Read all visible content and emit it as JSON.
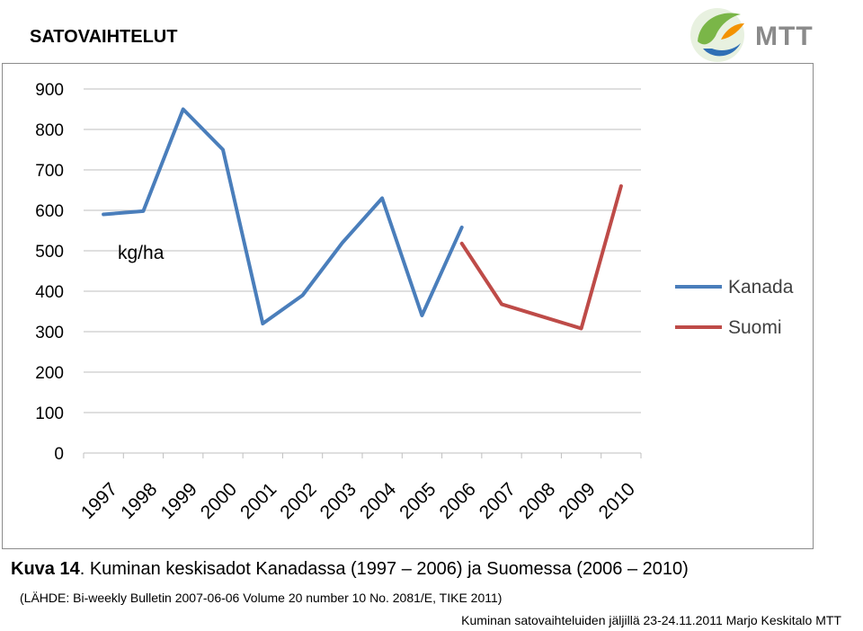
{
  "header": {
    "title": "SATOVAIHTELUT"
  },
  "logo": {
    "text": "MTT",
    "colors": {
      "green": "#7ab648",
      "blue": "#2f6fb5",
      "orange": "#f39200",
      "text_grey": "#8a8a8a"
    }
  },
  "chart_data": {
    "type": "line",
    "title": "",
    "xlabel": "",
    "ylabel": "",
    "unit_label": "kg/ha",
    "categories": [
      "1997",
      "1998",
      "1999",
      "2000",
      "2001",
      "2002",
      "2003",
      "2004",
      "2005",
      "2006",
      "2007",
      "2008",
      "2009",
      "2010"
    ],
    "ylim": [
      0,
      900
    ],
    "yticks": [
      0,
      100,
      200,
      300,
      400,
      500,
      600,
      700,
      800,
      900
    ],
    "grid": true,
    "legend_position": "right",
    "series": [
      {
        "name": "Kanada",
        "color": "#4a7ebb",
        "values": [
          590,
          598,
          850,
          750,
          320,
          390,
          520,
          630,
          340,
          558,
          null,
          null,
          null,
          null
        ]
      },
      {
        "name": "Suomi",
        "color": "#be4b48",
        "values": [
          null,
          null,
          null,
          null,
          null,
          null,
          null,
          null,
          null,
          518,
          368,
          338,
          308,
          660
        ]
      }
    ]
  },
  "caption": {
    "label": "Kuva 14",
    "text": ". Kuminan keskisadot Kanadassa (1997 – 2006) ja Suomessa (2006 – 2010)"
  },
  "source": "(LÄHDE: Bi-weekly Bulletin 2007-06-06 Volume 20 number 10 No. 2081/E, TIKE 2011)",
  "footer": "Kuminan satovaihteluiden jäljillä 23-24.11.2011 Marjo Keskitalo MTT"
}
